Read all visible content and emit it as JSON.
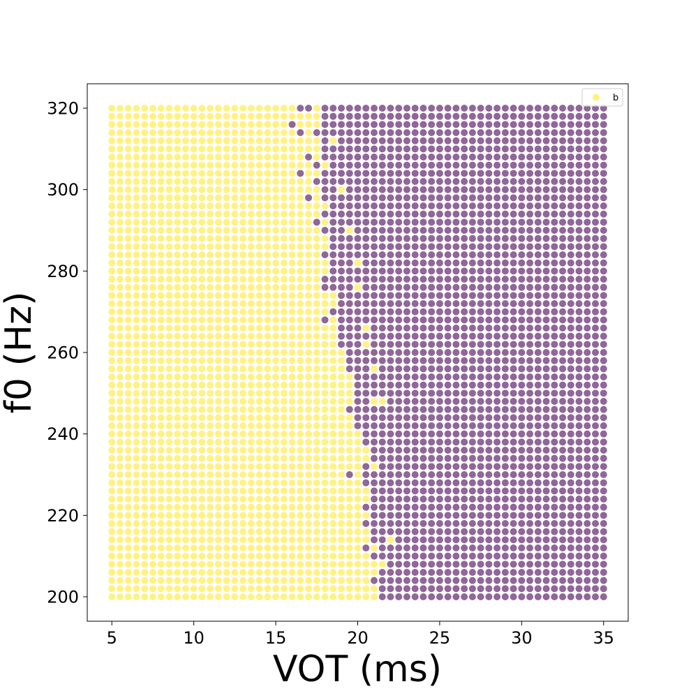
{
  "chart_data": {
    "type": "scatter",
    "xlabel": "VOT (ms)",
    "ylabel": "f0 (Hz)",
    "xlim": [
      3.5,
      36.5
    ],
    "ylim": [
      194,
      326
    ],
    "x_ticks": [
      5,
      10,
      15,
      20,
      25,
      30,
      35
    ],
    "y_ticks": [
      200,
      220,
      240,
      260,
      280,
      300,
      320
    ],
    "grid": false,
    "grid_x": {
      "start": 5,
      "step": 0.5,
      "count": 61
    },
    "grid_y": {
      "start": 200,
      "step": 2,
      "count": 61
    },
    "boundary_description": "VOT value at which category switches from yellow to purple for each f0 row (from bottom row f0=200 upward)",
    "boundary_vot": [
      21.5,
      21.5,
      21,
      21.5,
      21.5,
      21,
      21.5,
      21,
      21,
      21,
      21,
      21,
      21,
      21,
      20.5,
      20.5,
      20.5,
      21,
      21,
      20.5,
      20.5,
      20,
      20,
      20,
      20,
      20,
      20,
      20,
      19.5,
      19.5,
      19.5,
      19,
      19,
      19,
      19,
      18.5,
      19,
      19,
      18.5,
      18.5,
      18.5,
      18.5,
      18.5,
      18.5,
      18.5,
      18,
      18.5,
      18,
      18.5,
      18.5,
      18,
      17.5,
      18,
      18,
      18,
      18,
      18,
      18,
      18,
      18,
      18
    ],
    "exceptions": [
      {
        "x": 16,
        "y": 316,
        "cls": 1
      },
      {
        "x": 16.5,
        "y": 314,
        "cls": 1
      },
      {
        "x": 16.5,
        "y": 304,
        "cls": 1
      },
      {
        "x": 17,
        "y": 320,
        "cls": 1
      },
      {
        "x": 16.5,
        "y": 320,
        "cls": 1
      },
      {
        "x": 17,
        "y": 308,
        "cls": 1
      },
      {
        "x": 17.5,
        "y": 314,
        "cls": 1
      },
      {
        "x": 17.5,
        "y": 306,
        "cls": 1
      },
      {
        "x": 17,
        "y": 298,
        "cls": 1
      },
      {
        "x": 18,
        "y": 312,
        "cls": 1
      },
      {
        "x": 18,
        "y": 298,
        "cls": 1
      },
      {
        "x": 17.5,
        "y": 292,
        "cls": 1
      },
      {
        "x": 18,
        "y": 268,
        "cls": 1
      },
      {
        "x": 18,
        "y": 278,
        "cls": 1
      },
      {
        "x": 18,
        "y": 284,
        "cls": 1
      },
      {
        "x": 18,
        "y": 276,
        "cls": 1
      },
      {
        "x": 19,
        "y": 262,
        "cls": 1
      },
      {
        "x": 18.5,
        "y": 282,
        "cls": 1
      },
      {
        "x": 19,
        "y": 294,
        "cls": 1
      },
      {
        "x": 19.5,
        "y": 256,
        "cls": 1
      },
      {
        "x": 19.5,
        "y": 246,
        "cls": 1
      },
      {
        "x": 19.5,
        "y": 230,
        "cls": 1
      },
      {
        "x": 20.5,
        "y": 218,
        "cls": 1
      },
      {
        "x": 20.5,
        "y": 212,
        "cls": 1
      },
      {
        "x": 20.5,
        "y": 222,
        "cls": 1
      },
      {
        "x": 19,
        "y": 300,
        "cls": 0
      },
      {
        "x": 19.5,
        "y": 290,
        "cls": 0
      },
      {
        "x": 20,
        "y": 282,
        "cls": 0
      },
      {
        "x": 20,
        "y": 276,
        "cls": 0
      },
      {
        "x": 20.5,
        "y": 266,
        "cls": 0
      },
      {
        "x": 20.5,
        "y": 262,
        "cls": 0
      },
      {
        "x": 21,
        "y": 256,
        "cls": 0
      },
      {
        "x": 21,
        "y": 248,
        "cls": 0
      },
      {
        "x": 21.5,
        "y": 248,
        "cls": 0
      },
      {
        "x": 21,
        "y": 232,
        "cls": 0
      },
      {
        "x": 22,
        "y": 214,
        "cls": 0
      },
      {
        "x": 21.5,
        "y": 208,
        "cls": 0
      },
      {
        "x": 20.5,
        "y": 236,
        "cls": 0
      },
      {
        "x": 18.5,
        "y": 312,
        "cls": 0
      },
      {
        "x": 18,
        "y": 306,
        "cls": 0
      }
    ],
    "series": [
      {
        "name": "b",
        "color": "#fde725"
      },
      {
        "color": "#440154"
      }
    ],
    "legend": {
      "position": "top-right",
      "entries": [
        "b"
      ]
    }
  }
}
